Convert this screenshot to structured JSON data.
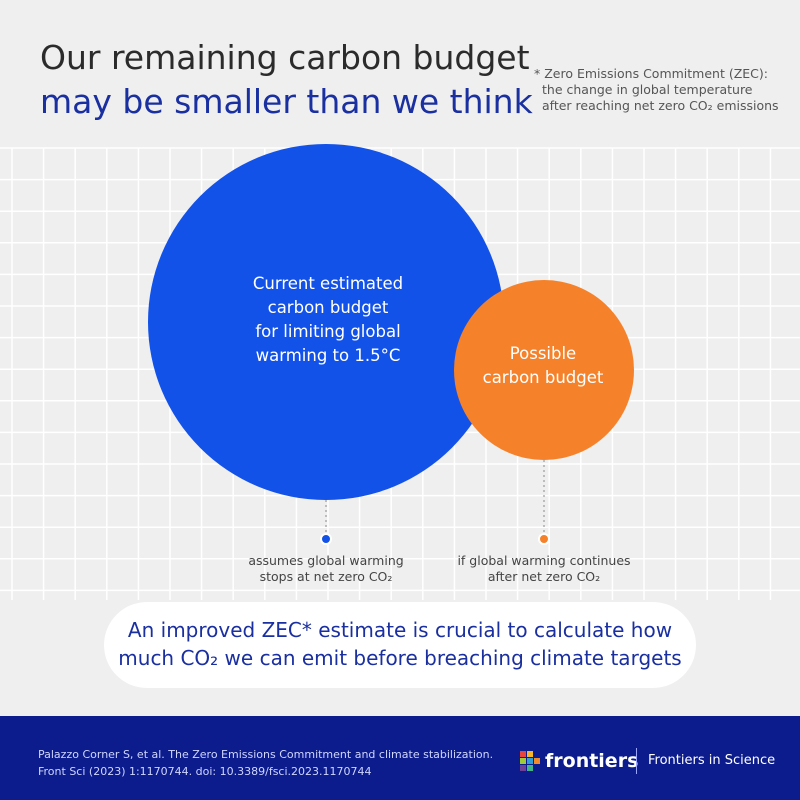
{
  "title": {
    "line1": "Our remaining carbon budget",
    "line2": "may be smaller than we think"
  },
  "note": {
    "line1": "* Zero Emissions Commitment (ZEC):",
    "line2": "the change in global temperature",
    "line3": "after reaching net zero CO₂ emissions"
  },
  "circles": {
    "current": {
      "lines": [
        "Current estimated",
        "carbon budget",
        "for limiting global",
        "warming to 1.5°C"
      ],
      "color": "#1352e8",
      "caption": [
        "assumes global warming",
        "stops at net zero CO₂"
      ]
    },
    "possible": {
      "lines": [
        "Possible",
        "carbon budget"
      ],
      "color": "#f5822a",
      "caption": [
        "if global warming continues",
        "after net zero CO₂"
      ]
    }
  },
  "message": {
    "line1": "An improved ZEC* estimate is crucial to calculate how",
    "line2": "much CO₂ we can emit before breaching climate targets"
  },
  "footer": {
    "citation_line1": "Palazzo Corner S, et al. The Zero Emissions Commitment and climate stabilization.",
    "citation_line2": "Front Sci (2023) 1:1170744. doi: 10.3389/fsci.2023.1170744",
    "logo_text": "frontiers",
    "brand": "Frontiers in Science",
    "color": "#0c1c8c"
  },
  "colors": {
    "background": "#efefef",
    "title_accent": "#1a2fa0",
    "grid": "#ffffff"
  }
}
